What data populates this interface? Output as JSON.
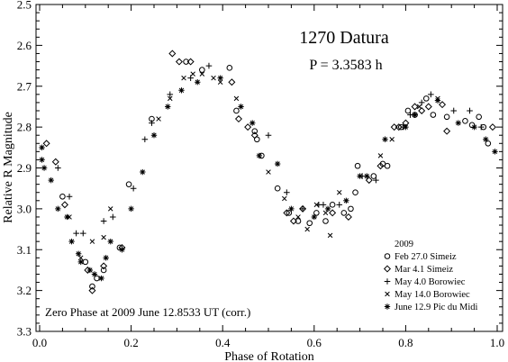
{
  "chart_data": {
    "type": "scatter",
    "title": "1270 Datura",
    "subtitle": "P = 3.3583 h",
    "xlabel": "Phase of Rotation",
    "ylabel": "Relative R Magnitude",
    "xlim": [
      0.0,
      1.0
    ],
    "ylim": [
      2.5,
      3.3
    ],
    "y_inverted": true,
    "x_ticks": [
      "0.0",
      "0.2",
      "0.4",
      "0.6",
      "0.8",
      "1.0"
    ],
    "y_ticks": [
      "2.5",
      "2.6",
      "2.7",
      "2.8",
      "2.9",
      "3.0",
      "3.1",
      "3.2",
      "3.3"
    ],
    "annotation": "Zero Phase at 2009 June 12.8533 UT (corr.)",
    "legend_title": "2009",
    "legend_position": "bottom-right",
    "grid": false,
    "series": [
      {
        "name": "Feb 27.0 Simeiz",
        "marker": "circle",
        "points": [
          [
            0.05,
            2.97
          ],
          [
            0.1,
            3.13
          ],
          [
            0.115,
            3.19
          ],
          [
            0.125,
            3.17
          ],
          [
            0.14,
            3.15
          ],
          [
            0.175,
            3.095
          ],
          [
            0.195,
            2.94
          ],
          [
            0.245,
            2.78
          ],
          [
            0.32,
            2.64
          ],
          [
            0.355,
            2.66
          ],
          [
            0.415,
            2.655
          ],
          [
            0.43,
            2.76
          ],
          [
            0.47,
            2.81
          ],
          [
            0.475,
            2.83
          ],
          [
            0.485,
            2.87
          ],
          [
            0.52,
            2.95
          ],
          [
            0.545,
            3.01
          ],
          [
            0.565,
            3.03
          ],
          [
            0.59,
            3.035
          ],
          [
            0.605,
            3.01
          ],
          [
            0.625,
            3.03
          ],
          [
            0.64,
            2.99
          ],
          [
            0.665,
            3.01
          ],
          [
            0.68,
            3.0
          ],
          [
            0.69,
            2.96
          ],
          [
            0.695,
            2.895
          ],
          [
            0.73,
            2.92
          ],
          [
            0.75,
            2.89
          ],
          [
            0.76,
            2.895
          ],
          [
            0.79,
            2.8
          ],
          [
            0.805,
            2.76
          ],
          [
            0.82,
            2.77
          ],
          [
            0.845,
            2.73
          ],
          [
            0.86,
            2.77
          ],
          [
            0.89,
            2.775
          ],
          [
            0.93,
            2.785
          ],
          [
            0.945,
            2.795
          ],
          [
            0.96,
            2.775
          ],
          [
            0.97,
            2.8
          ],
          [
            0.98,
            2.84
          ]
        ]
      },
      {
        "name": "Mar 4.1 Simeiz",
        "marker": "diamond",
        "points": [
          [
            0.015,
            2.84
          ],
          [
            0.035,
            2.885
          ],
          [
            0.055,
            2.99
          ],
          [
            0.105,
            3.15
          ],
          [
            0.115,
            3.2
          ],
          [
            0.14,
            3.14
          ],
          [
            0.18,
            3.095
          ],
          [
            0.29,
            2.62
          ],
          [
            0.305,
            2.64
          ],
          [
            0.33,
            2.64
          ],
          [
            0.42,
            2.69
          ],
          [
            0.435,
            2.78
          ],
          [
            0.455,
            2.8
          ],
          [
            0.47,
            2.82
          ],
          [
            0.54,
            3.01
          ],
          [
            0.555,
            3.03
          ],
          [
            0.575,
            3.0
          ],
          [
            0.64,
            3.01
          ],
          [
            0.675,
            3.02
          ],
          [
            0.72,
            2.93
          ],
          [
            0.745,
            2.895
          ],
          [
            0.775,
            2.8
          ],
          [
            0.785,
            2.8
          ],
          [
            0.8,
            2.79
          ],
          [
            0.82,
            2.75
          ],
          [
            0.835,
            2.76
          ],
          [
            0.85,
            2.75
          ],
          [
            0.88,
            2.745
          ],
          [
            0.89,
            2.81
          ],
          [
            0.99,
            2.8
          ]
        ]
      },
      {
        "name": "May 4.0 Borowiec",
        "marker": "plus",
        "points": [
          [
            0.04,
            2.9
          ],
          [
            0.065,
            2.97
          ],
          [
            0.08,
            3.06
          ],
          [
            0.095,
            3.06
          ],
          [
            0.14,
            3.03
          ],
          [
            0.16,
            3.02
          ],
          [
            0.205,
            2.95
          ],
          [
            0.23,
            2.83
          ],
          [
            0.245,
            2.79
          ],
          [
            0.285,
            2.72
          ],
          [
            0.33,
            2.68
          ],
          [
            0.37,
            2.65
          ],
          [
            0.5,
            2.82
          ],
          [
            0.54,
            2.96
          ],
          [
            0.575,
            3.0
          ],
          [
            0.61,
            2.99
          ],
          [
            0.62,
            2.99
          ],
          [
            0.655,
            2.99
          ],
          [
            0.705,
            2.92
          ],
          [
            0.735,
            2.93
          ],
          [
            0.795,
            2.8
          ],
          [
            0.81,
            2.77
          ],
          [
            0.835,
            2.74
          ],
          [
            0.855,
            2.72
          ],
          [
            0.905,
            2.76
          ],
          [
            0.94,
            2.76
          ],
          [
            0.965,
            2.8
          ]
        ]
      },
      {
        "name": "May 14.0 Borowiec",
        "marker": "cross",
        "points": [
          [
            0.065,
            3.02
          ],
          [
            0.09,
            3.12
          ],
          [
            0.115,
            3.08
          ],
          [
            0.14,
            3.07
          ],
          [
            0.155,
            3.0
          ],
          [
            0.26,
            2.78
          ],
          [
            0.285,
            2.73
          ],
          [
            0.315,
            2.68
          ],
          [
            0.335,
            2.67
          ],
          [
            0.355,
            2.67
          ],
          [
            0.38,
            2.68
          ],
          [
            0.395,
            2.69
          ],
          [
            0.43,
            2.73
          ],
          [
            0.5,
            2.91
          ],
          [
            0.535,
            2.975
          ],
          [
            0.565,
            3.02
          ],
          [
            0.585,
            3.05
          ],
          [
            0.605,
            2.99
          ],
          [
            0.625,
            3.01
          ],
          [
            0.635,
            3.065
          ],
          [
            0.655,
            2.96
          ],
          [
            0.745,
            2.87
          ],
          [
            0.77,
            2.83
          ],
          [
            0.83,
            2.75
          ],
          [
            0.87,
            2.73
          ]
        ]
      },
      {
        "name": "June 12.9 Pic du Midi",
        "marker": "asterisk",
        "points": [
          [
            0.005,
            2.85
          ],
          [
            0.005,
            2.88
          ],
          [
            0.01,
            2.9
          ],
          [
            0.025,
            2.93
          ],
          [
            0.04,
            3.0
          ],
          [
            0.06,
            3.02
          ],
          [
            0.07,
            3.08
          ],
          [
            0.085,
            3.11
          ],
          [
            0.09,
            3.13
          ],
          [
            0.11,
            3.15
          ],
          [
            0.12,
            3.16
          ],
          [
            0.135,
            3.17
          ],
          [
            0.145,
            3.12
          ],
          [
            0.155,
            3.08
          ],
          [
            0.18,
            3.1
          ],
          [
            0.2,
            3.0
          ],
          [
            0.225,
            2.91
          ],
          [
            0.25,
            2.82
          ],
          [
            0.28,
            2.75
          ],
          [
            0.31,
            2.71
          ],
          [
            0.345,
            2.69
          ],
          [
            0.395,
            2.68
          ],
          [
            0.44,
            2.75
          ],
          [
            0.465,
            2.79
          ],
          [
            0.48,
            2.87
          ],
          [
            0.52,
            2.89
          ],
          [
            0.55,
            3.0
          ],
          [
            0.6,
            3.02
          ],
          [
            0.63,
            3.0
          ],
          [
            0.67,
            2.98
          ],
          [
            0.7,
            2.92
          ],
          [
            0.715,
            2.92
          ],
          [
            0.755,
            2.83
          ],
          [
            0.8,
            2.8
          ],
          [
            0.82,
            2.77
          ],
          [
            0.87,
            2.735
          ],
          [
            0.915,
            2.79
          ],
          [
            0.95,
            2.8
          ],
          [
            0.975,
            2.83
          ],
          [
            0.995,
            2.86
          ]
        ]
      }
    ]
  }
}
